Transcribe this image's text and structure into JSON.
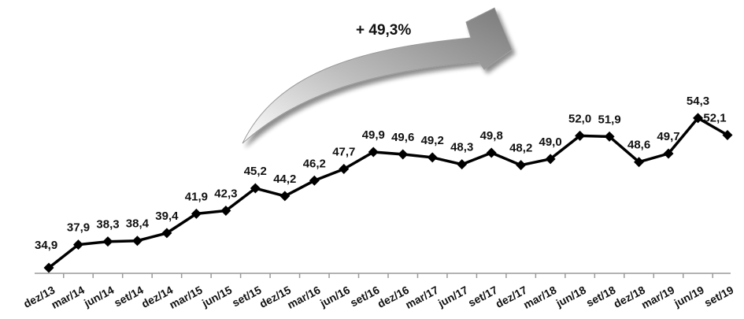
{
  "chart_data": {
    "type": "line",
    "categories": [
      "dez/13",
      "mar/14",
      "jun/14",
      "set/14",
      "dez/14",
      "mar/15",
      "jun/15",
      "set/15",
      "dez/15",
      "mar/16",
      "jun/16",
      "set/16",
      "dez/16",
      "mar/17",
      "jun/17",
      "set/17",
      "dez/17",
      "mar/18",
      "jun/18",
      "set/18",
      "dez/18",
      "mar/19",
      "jun/19",
      "set/19"
    ],
    "values": [
      34.9,
      37.9,
      38.3,
      38.4,
      39.4,
      41.9,
      42.3,
      45.2,
      44.2,
      46.2,
      47.7,
      49.9,
      49.6,
      49.2,
      48.3,
      49.8,
      48.2,
      49.0,
      52.0,
      51.9,
      48.6,
      49.7,
      54.3,
      52.1
    ],
    "data_labels": [
      "34,9",
      "37,9",
      "38,3",
      "38,4",
      "39,4",
      "41,9",
      "42,3",
      "45,2",
      "44,2",
      "46,2",
      "47,7",
      "49,9",
      "49,6",
      "49,2",
      "48,3",
      "49,8",
      "48,2",
      "49,0",
      "52,0",
      "51,9",
      "48,6",
      "49,7",
      "54,3",
      "52,1"
    ],
    "annotation": "+ 49,3%",
    "line_color": "#000000",
    "arrow_color": "#8a8a8a",
    "grid": false,
    "legend": "none"
  }
}
